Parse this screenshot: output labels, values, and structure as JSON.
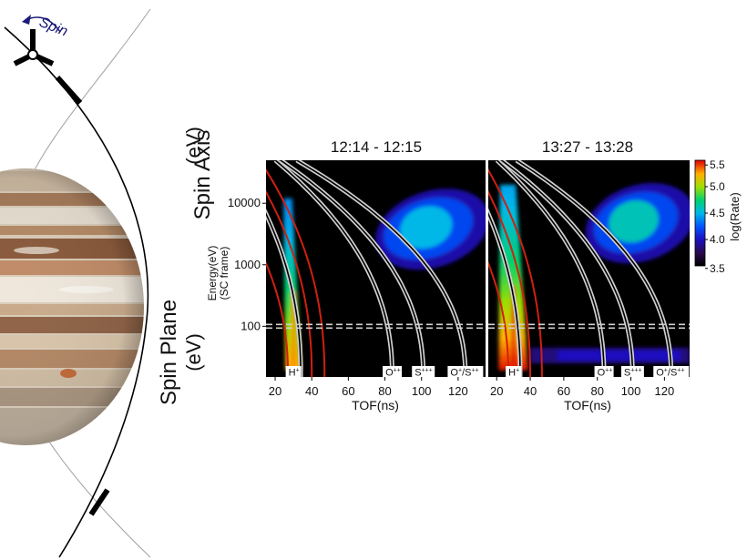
{
  "figure": {
    "spin_label": "Spin",
    "spin_axis_label": "Spin Axis",
    "spin_axis_unit": "(eV)",
    "spin_plane_label": "Spin Plane",
    "spin_plane_unit": "(eV)"
  },
  "colors": {
    "spin_arrow": "#1a1a7a",
    "jupiter_band_dark": "#8a5a3c",
    "jupiter_band_light": "#e8ddd0",
    "heavy_ion_track": "#cfcfcf",
    "proton_track": "#d02010",
    "panel_bg": "#000000"
  },
  "chart_data": [
    {
      "type": "heatmap",
      "title": "12:14 - 12:15",
      "xlabel": "TOF(ns)",
      "ylabel": "Energy(eV)",
      "ylabel_sub": "(SC frame)",
      "x_ticks": [
        20,
        40,
        60,
        80,
        100,
        120
      ],
      "x_tick_labels": [
        "20",
        "40",
        "60",
        "80",
        "100",
        "120"
      ],
      "y_scale": "log",
      "y_ticks": [
        100,
        1000,
        10000
      ],
      "y_tick_labels": [
        "100",
        "1000",
        "10000"
      ],
      "xlim": [
        15,
        135
      ],
      "ylim": [
        15,
        50000
      ],
      "boundary_line_y": 100,
      "species_labels": [
        {
          "text": "H",
          "sup": "+",
          "x": 30
        },
        {
          "text": "O",
          "sup": "++",
          "x": 84
        },
        {
          "text": "S",
          "sup": "+++",
          "x": 101
        },
        {
          "text": "O",
          "sup": "+",
          "mid": "/S",
          "sup2": "++",
          "x": 124
        }
      ],
      "features": [
        {
          "species": "H+",
          "tof_range": [
            26,
            34
          ],
          "energy_range": [
            20,
            12000
          ],
          "peak_log_rate": 5.3
        },
        {
          "species": "heavy",
          "tof_range": [
            72,
            130
          ],
          "energy_range": [
            1200,
            12000
          ],
          "peak_log_rate": 4.5
        }
      ]
    },
    {
      "type": "heatmap",
      "title": "13:27 - 13:28",
      "xlabel": "TOF(ns)",
      "ylabel": "",
      "x_ticks": [
        20,
        40,
        60,
        80,
        100,
        120
      ],
      "x_tick_labels": [
        "20",
        "40",
        "60",
        "80",
        "100",
        "120"
      ],
      "y_scale": "log",
      "xlim": [
        15,
        135
      ],
      "ylim": [
        15,
        50000
      ],
      "boundary_line_y": 100,
      "species_labels": [
        {
          "text": "H",
          "sup": "+",
          "x": 30
        },
        {
          "text": "O",
          "sup": "++",
          "x": 84
        },
        {
          "text": "S",
          "sup": "+++",
          "x": 101
        },
        {
          "text": "O",
          "sup": "+",
          "mid": "/S",
          "sup2": "++",
          "x": 124
        }
      ],
      "features": [
        {
          "species": "H+",
          "tof_range": [
            22,
            38
          ],
          "energy_range": [
            20,
            20000
          ],
          "peak_log_rate": 5.5
        },
        {
          "species": "heavy",
          "tof_range": [
            70,
            130
          ],
          "energy_range": [
            1500,
            15000
          ],
          "peak_log_rate": 4.6
        },
        {
          "species": "low-energy band",
          "tof_range": [
            40,
            135
          ],
          "energy_range": [
            25,
            45
          ],
          "peak_log_rate": 4.0
        }
      ]
    }
  ],
  "colorbar": {
    "label": "log(Rate)",
    "ticks": [
      3.5,
      4.0,
      4.5,
      5.0,
      5.5
    ],
    "tick_labels": [
      "3.5",
      "4.0",
      "4.5",
      "5.0",
      "5.5"
    ],
    "range": [
      3.5,
      5.5
    ]
  }
}
